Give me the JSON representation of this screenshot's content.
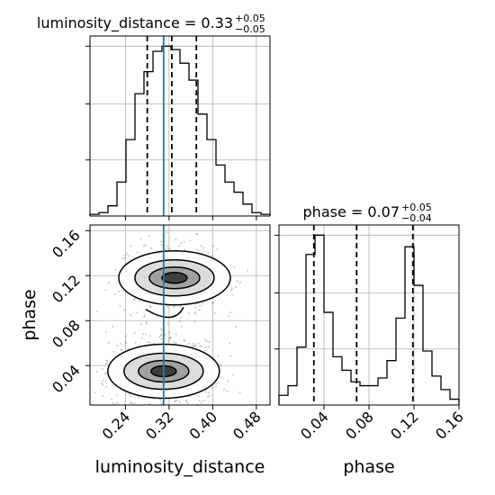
{
  "chart_data": {
    "type": "corner",
    "panels": {
      "luminosity_distance_hist": {
        "type": "histogram",
        "title": {
          "base": "luminosity_distance = 0.33",
          "sup": "+0.05",
          "sub": "−0.05"
        },
        "xlim": [
          0.175,
          0.505
        ],
        "bin_edges": [
          0.175,
          0.1915,
          0.208,
          0.2245,
          0.241,
          0.2575,
          0.274,
          0.2905,
          0.307,
          0.3235,
          0.34,
          0.3565,
          0.373,
          0.3895,
          0.406,
          0.4225,
          0.439,
          0.4555,
          0.472,
          0.4885,
          0.505
        ],
        "counts": [
          1,
          2,
          6,
          20,
          45,
          72,
          85,
          97,
          100,
          98,
          90,
          80,
          60,
          45,
          30,
          20,
          14,
          7,
          2,
          1
        ],
        "quantiles": [
          0.28,
          0.325,
          0.37
        ],
        "truth": 0.31
      },
      "phase_hist": {
        "type": "histogram",
        "title": {
          "base": "phase = 0.07",
          "sup": "+0.05",
          "sub": "−0.04"
        },
        "xlim": [
          0.0,
          0.16
        ],
        "bin_edges": [
          0.0,
          0.008,
          0.016,
          0.024,
          0.032,
          0.04,
          0.048,
          0.056,
          0.064,
          0.072,
          0.08,
          0.088,
          0.096,
          0.104,
          0.112,
          0.12,
          0.128,
          0.136,
          0.144,
          0.152,
          0.16
        ],
        "counts": [
          5,
          10,
          30,
          78,
          88,
          48,
          25,
          18,
          12,
          10,
          10,
          14,
          23,
          45,
          82,
          62,
          28,
          15,
          8,
          3
        ],
        "quantiles": [
          0.031,
          0.069,
          0.119
        ]
      },
      "joint": {
        "type": "contour",
        "xlim": [
          0.175,
          0.505
        ],
        "ylim": [
          0.005,
          0.165
        ],
        "truth_x": 0.31,
        "modes": [
          {
            "x": 0.33,
            "y": 0.118,
            "weight": 0.45
          },
          {
            "x": 0.31,
            "y": 0.035,
            "weight": 0.55
          }
        ]
      }
    },
    "axes": {
      "luminosity_distance": {
        "label": "luminosity_distance",
        "ticks": [
          0.24,
          0.32,
          0.4,
          0.48
        ],
        "tick_labels": [
          "0.24",
          "0.32",
          "0.40",
          "0.48"
        ]
      },
      "phase": {
        "label": "phase",
        "ticks": [
          0.04,
          0.08,
          0.12,
          0.16
        ],
        "tick_labels": [
          "0.04",
          "0.08",
          "0.12",
          "0.16"
        ]
      }
    },
    "grid": true,
    "colors": {
      "hist": "#000000",
      "truth": "#1f77b4",
      "grid": "#b0b0b0",
      "scatter": "#000000"
    }
  }
}
